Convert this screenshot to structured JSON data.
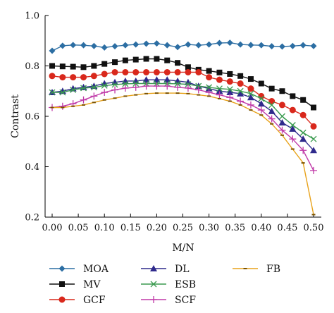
{
  "chart_data": {
    "type": "line",
    "xlabel": "M/N",
    "ylabel": "Contrast",
    "xlim": [
      0.0,
      0.5
    ],
    "ylim": [
      0.2,
      1.0
    ],
    "xticks": [
      "0.00",
      "0.05",
      "0.10",
      "0.15",
      "0.20",
      "0.25",
      "0.30",
      "0.35",
      "0.40",
      "0.45",
      "0.50"
    ],
    "yticks": [
      "0.2",
      "0.4",
      "0.6",
      "0.8",
      "1.0"
    ],
    "grid": false,
    "legend_position": "bottom",
    "x": [
      0.0,
      0.02,
      0.04,
      0.06,
      0.08,
      0.1,
      0.12,
      0.14,
      0.16,
      0.18,
      0.2,
      0.22,
      0.24,
      0.26,
      0.28,
      0.3,
      0.32,
      0.34,
      0.36,
      0.38,
      0.4,
      0.42,
      0.44,
      0.46,
      0.48,
      0.5
    ],
    "series": [
      {
        "name": "MOA",
        "color": "#2c6ea3",
        "marker": "diamond",
        "values": [
          0.86,
          0.88,
          0.883,
          0.882,
          0.879,
          0.873,
          0.878,
          0.882,
          0.885,
          0.888,
          0.889,
          0.882,
          0.875,
          0.885,
          0.882,
          0.885,
          0.891,
          0.892,
          0.885,
          0.883,
          0.882,
          0.878,
          0.877,
          0.879,
          0.882,
          0.879
        ]
      },
      {
        "name": "MV",
        "color": "#111111",
        "marker": "square",
        "values": [
          0.8,
          0.798,
          0.797,
          0.795,
          0.8,
          0.808,
          0.815,
          0.822,
          0.825,
          0.828,
          0.828,
          0.822,
          0.812,
          0.795,
          0.785,
          0.78,
          0.774,
          0.768,
          0.76,
          0.748,
          0.73,
          0.71,
          0.7,
          0.68,
          0.665,
          0.635
        ]
      },
      {
        "name": "GCF",
        "color": "#d9281c",
        "marker": "circle",
        "values": [
          0.76,
          0.755,
          0.755,
          0.755,
          0.76,
          0.768,
          0.775,
          0.775,
          0.775,
          0.775,
          0.775,
          0.775,
          0.775,
          0.775,
          0.775,
          0.755,
          0.745,
          0.738,
          0.73,
          0.71,
          0.68,
          0.66,
          0.645,
          0.625,
          0.605,
          0.56
        ]
      },
      {
        "name": "DL",
        "color": "#2f2a8c",
        "marker": "triangle",
        "values": [
          0.695,
          0.7,
          0.71,
          0.715,
          0.72,
          0.73,
          0.735,
          0.74,
          0.74,
          0.745,
          0.745,
          0.745,
          0.74,
          0.735,
          0.72,
          0.71,
          0.7,
          0.695,
          0.69,
          0.675,
          0.65,
          0.62,
          0.575,
          0.55,
          0.51,
          0.465
        ]
      },
      {
        "name": "ESB",
        "color": "#3a9a4f",
        "marker": "x",
        "values": [
          0.695,
          0.695,
          0.705,
          0.712,
          0.715,
          0.722,
          0.726,
          0.729,
          0.73,
          0.73,
          0.73,
          0.73,
          0.729,
          0.727,
          0.72,
          0.715,
          0.71,
          0.707,
          0.7,
          0.69,
          0.67,
          0.645,
          0.6,
          0.565,
          0.535,
          0.51
        ]
      },
      {
        "name": "SCF",
        "color": "#c03aa8",
        "marker": "plus",
        "values": [
          0.635,
          0.64,
          0.65,
          0.665,
          0.68,
          0.695,
          0.705,
          0.712,
          0.715,
          0.72,
          0.72,
          0.72,
          0.715,
          0.712,
          0.705,
          0.695,
          0.685,
          0.675,
          0.66,
          0.645,
          0.625,
          0.59,
          0.545,
          0.51,
          0.465,
          0.385
        ]
      },
      {
        "name": "FB",
        "color": "#e8a21a",
        "marker": "dash",
        "values": [
          0.635,
          0.635,
          0.64,
          0.645,
          0.655,
          0.665,
          0.672,
          0.68,
          0.685,
          0.69,
          0.692,
          0.692,
          0.692,
          0.69,
          0.685,
          0.68,
          0.67,
          0.66,
          0.645,
          0.625,
          0.605,
          0.57,
          0.525,
          0.47,
          0.415,
          0.21
        ]
      }
    ]
  }
}
